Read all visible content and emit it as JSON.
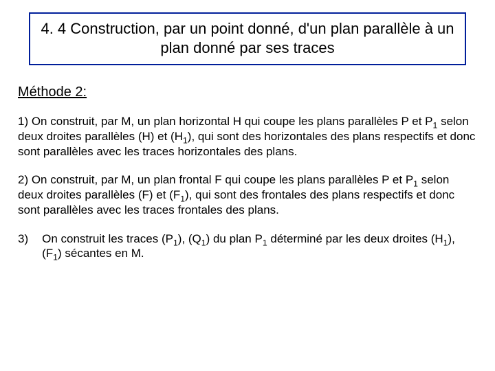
{
  "title": "4. 4  Construction, par un point donné, d'un plan parallèle  à un plan donné par ses traces",
  "subheading": "Méthode 2:",
  "p1_a": "1)    On construit, par M, un plan horizontal H  qui coupe les plans parallèles P et P",
  "p1_sub": "1",
  "p1_b": " selon deux droites parallèles (H) et (H",
  "p1_sub2": "1",
  "p1_c": "), qui sont des horizontales des plans respectifs et donc sont parallèles avec les traces horizontales des plans.",
  "p2_a": "2)    On construit, par M, un plan frontal F  qui coupe les plans parallèles P et P",
  "p2_sub": "1",
  "p2_b": " selon deux droites parallèles (F) et (F",
  "p2_sub2": "1",
  "p2_c": "), qui sont des frontales des plans respectifs et donc sont parallèles avec les traces frontales des plans.",
  "p3_num": "3)",
  "p3_a": " On construit les traces  (P",
  "p3_s1": "1",
  "p3_b": "),  (Q",
  "p3_s2": "1",
  "p3_c": ") du plan P",
  "p3_s3": "1",
  "p3_d": "  déterminé par les deux droites (H",
  "p3_s4": "1",
  "p3_e": "), (F",
  "p3_s5": "1",
  "p3_f": ") sécantes en M.",
  "colors": {
    "border": "#001e9a",
    "text": "#000000",
    "background": "#ffffff"
  }
}
